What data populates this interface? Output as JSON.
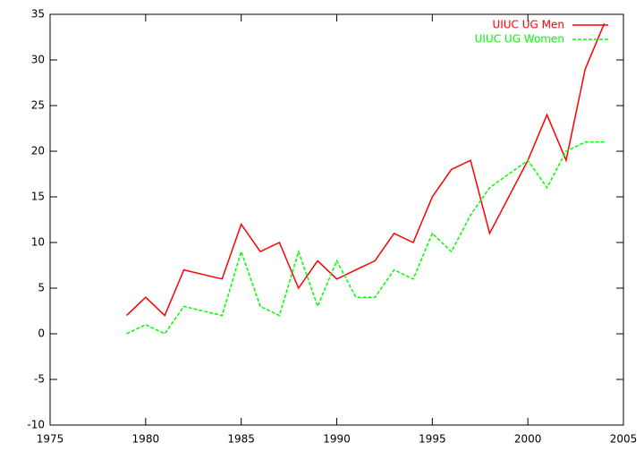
{
  "chart_data": {
    "type": "line",
    "x": [
      1979,
      1980,
      1981,
      1982,
      1984,
      1985,
      1986,
      1987,
      1988,
      1989,
      1990,
      1991,
      1992,
      1993,
      1994,
      1995,
      1996,
      1997,
      1998,
      2000,
      2001,
      2002,
      2003,
      2004
    ],
    "series": [
      {
        "name": "UIUC UG Men",
        "color": "#ff0000",
        "dash": false,
        "values": [
          2,
          4,
          2,
          7,
          6,
          12,
          9,
          10,
          5,
          8,
          6,
          7,
          8,
          11,
          10,
          15,
          18,
          19,
          11,
          19,
          24,
          19,
          29,
          34
        ]
      },
      {
        "name": "UIUC UG Women",
        "color": "#00ff00",
        "dash": true,
        "values": [
          0,
          1,
          0,
          3,
          2,
          9,
          3,
          2,
          9,
          3,
          8,
          4,
          4,
          7,
          6,
          11,
          9,
          13,
          16,
          19,
          16,
          20,
          21,
          21
        ]
      }
    ],
    "xlim": [
      1975,
      2005
    ],
    "xticks": [
      1975,
      1980,
      1985,
      1990,
      1995,
      2000,
      2005
    ],
    "ylim": [
      -10,
      35
    ],
    "yticks": [
      -10,
      -5,
      0,
      5,
      10,
      15,
      20,
      25,
      30,
      35
    ],
    "grid": false,
    "legend": "top-right"
  }
}
